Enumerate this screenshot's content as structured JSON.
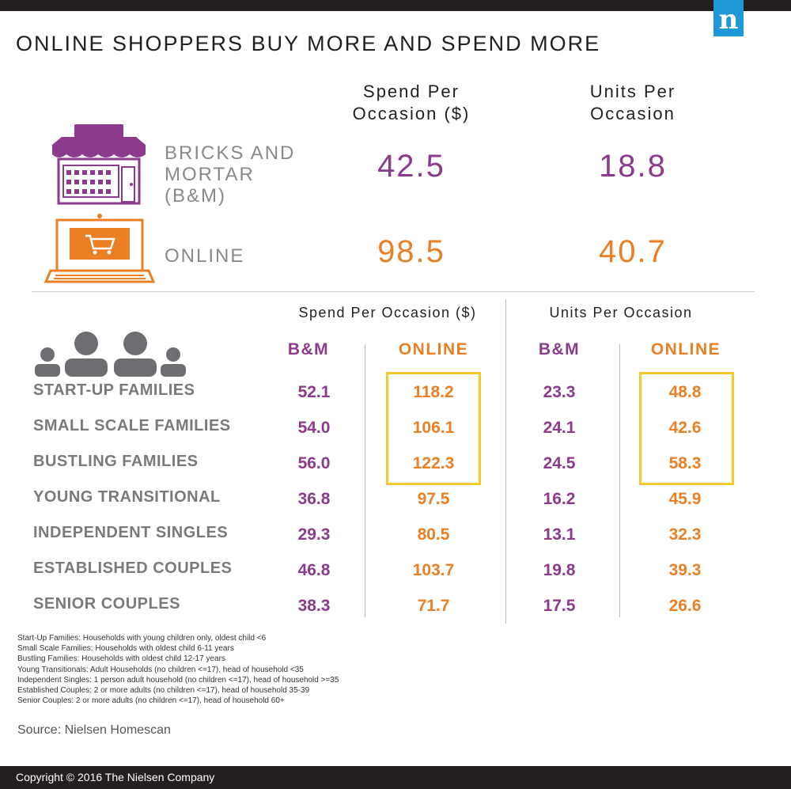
{
  "header": {
    "logo_letter": "n",
    "title": "ONLINE SHOPPERS BUY MORE AND SPEND MORE",
    "col_spend": [
      "Spend Per",
      "Occasion ($)"
    ],
    "col_units": [
      "Units Per",
      "Occasion"
    ]
  },
  "summary": {
    "bm": {
      "label_lines": [
        "BRICKS AND",
        "MORTAR",
        "(B&M)"
      ],
      "spend": "42.5",
      "units": "18.8"
    },
    "online": {
      "label": "ONLINE",
      "spend": "98.5",
      "units": "40.7"
    }
  },
  "table": {
    "spend_heading": "Spend Per Occasion ($)",
    "units_heading": "Units Per Occasion",
    "col_bm": "B&M",
    "col_online": "ONLINE",
    "rows": [
      {
        "label": "START-UP FAMILIES",
        "spend_bm": "52.1",
        "spend_online": "118.2",
        "units_bm": "23.3",
        "units_online": "48.8"
      },
      {
        "label": "SMALL SCALE FAMILIES",
        "spend_bm": "54.0",
        "spend_online": "106.1",
        "units_bm": "24.1",
        "units_online": "42.6"
      },
      {
        "label": "BUSTLING FAMILIES",
        "spend_bm": "56.0",
        "spend_online": "122.3",
        "units_bm": "24.5",
        "units_online": "58.3"
      },
      {
        "label": "YOUNG TRANSITIONAL",
        "spend_bm": "36.8",
        "spend_online": "97.5",
        "units_bm": "16.2",
        "units_online": "45.9"
      },
      {
        "label": "INDEPENDENT SINGLES",
        "spend_bm": "29.3",
        "spend_online": "80.5",
        "units_bm": "13.1",
        "units_online": "32.3"
      },
      {
        "label": "ESTABLISHED COUPLES",
        "spend_bm": "46.8",
        "spend_online": "103.7",
        "units_bm": "19.8",
        "units_online": "39.3"
      },
      {
        "label": "SENIOR COUPLES",
        "spend_bm": "38.3",
        "spend_online": "71.7",
        "units_bm": "17.5",
        "units_online": "26.6"
      }
    ]
  },
  "notes": [
    "Start-Up Families: Households with young children only, oldest child <6",
    "Small Scale Families: Households with oldest child 6-11 years",
    "Bustling Families: Households with oldest child 12-17 years",
    "Young Transitionals: Adult Households (no children <=17), head of household <35",
    "Independent Singles: 1 person adult household (no children <=17), head of household >=35",
    "Established Couples: 2 or more adults (no children <=17), head of household 35-39",
    "Senior Couples: 2 or more adults (no children <=17), head of household 60+"
  ],
  "source": "Source: Nielsen Homescan",
  "copyright": "Copyright © 2016 The Nielsen Company",
  "colors": {
    "purple": "#8c3a8c",
    "orange": "#ea7f24",
    "highlight": "#f3c92d",
    "dark": "#231f20",
    "logo_blue": "#1e98d6"
  },
  "icons": [
    "storefront-icon",
    "laptop-cart-icon",
    "family-group-icon"
  ]
}
